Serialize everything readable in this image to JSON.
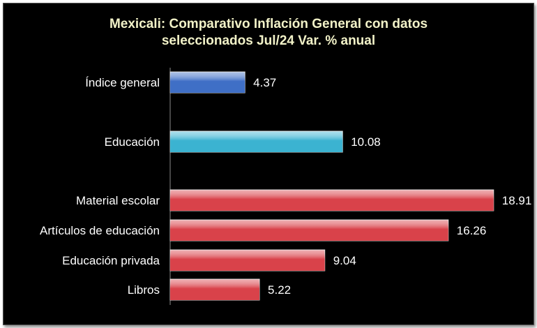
{
  "chart_data": {
    "type": "bar",
    "orientation": "horizontal",
    "title": [
      "Mexicali: Comparativo Inflación General con datos",
      "seleccionados  Jul/24 Var. % anual"
    ],
    "xlabel": "",
    "ylabel": "",
    "grid": false,
    "legend": "none",
    "xlim": [
      0,
      19
    ],
    "categories": [
      "Índice general",
      "Educación",
      "Material escolar",
      "Artículos de educación",
      "Educación privada",
      "Libros"
    ],
    "values": [
      4.37,
      10.08,
      18.91,
      16.26,
      9.04,
      5.22
    ],
    "value_labels": [
      "4.37",
      "10.08",
      "18.91",
      "16.26",
      "9.04",
      "5.22"
    ],
    "bar_colors": [
      "#3f6fc6",
      "#3bb3d1",
      "#d9424a",
      "#d9424a",
      "#d9424a",
      "#d9424a"
    ],
    "background": "#000000",
    "title_color": "#f2f2c8"
  }
}
